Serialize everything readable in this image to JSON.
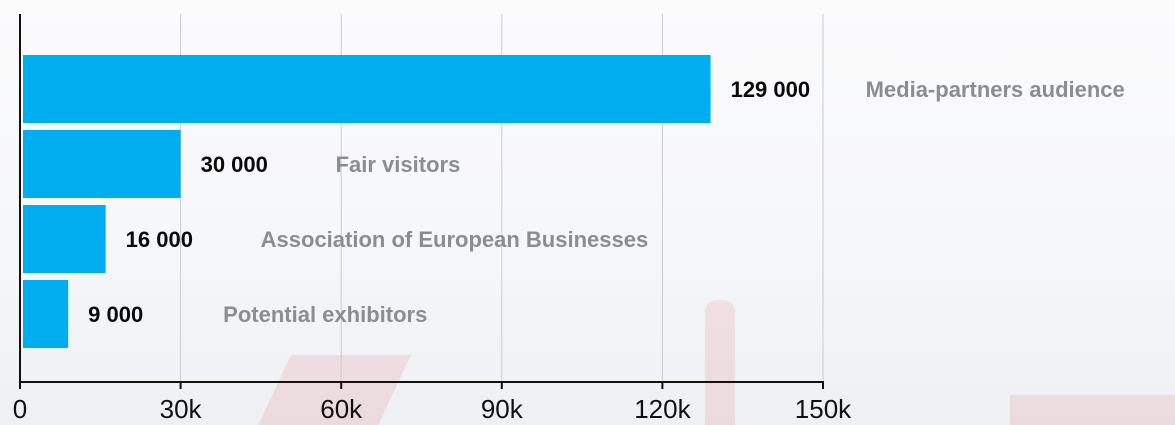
{
  "chart_data": {
    "type": "bar",
    "orientation": "horizontal",
    "categories": [
      "Media-partners audience",
      "Fair visitors",
      "Association of European Businesses",
      "Potential exhibitors"
    ],
    "values": [
      129000,
      30000,
      16000,
      9000
    ],
    "value_labels": [
      "129 000",
      "30 000",
      "16 000",
      "9 000"
    ],
    "xlim": [
      0,
      150000
    ],
    "x_ticks": [
      0,
      30000,
      60000,
      90000,
      120000,
      150000
    ],
    "x_tick_labels": [
      "0",
      "30k",
      "60k",
      "90k",
      "120k",
      "150k"
    ],
    "grid": "vertical",
    "bar_color": "#00aeef",
    "value_color": "#0a0a0a",
    "label_color": "#8a8d91",
    "grid_color": "#c9ccd0",
    "axis_color": "#111111"
  }
}
